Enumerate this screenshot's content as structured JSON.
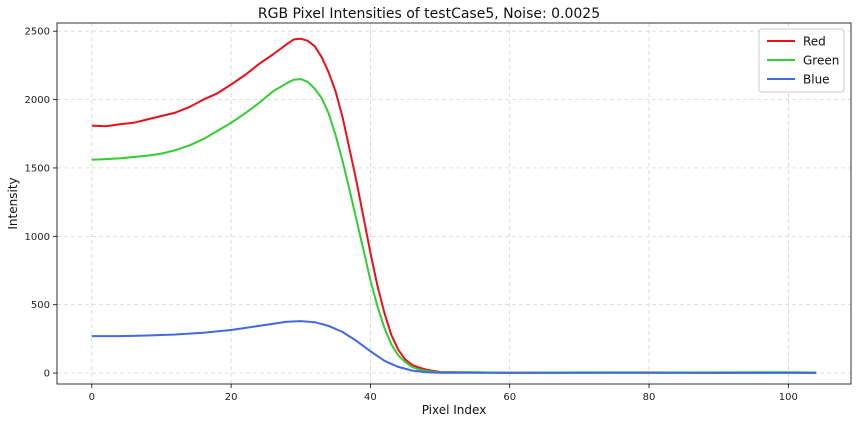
{
  "chart_data": {
    "type": "line",
    "title": "RGB Pixel Intensities of testCase5, Noise: 0.0025",
    "xlabel": "Pixel Index",
    "ylabel": "Intensity",
    "xlim": [
      -5,
      109
    ],
    "ylim": [
      -80,
      2560
    ],
    "xticks": [
      0,
      20,
      40,
      60,
      80,
      100
    ],
    "yticks": [
      0,
      500,
      1000,
      1500,
      2000,
      2500
    ],
    "grid": true,
    "legend_position": "top-right",
    "series": [
      {
        "name": "Red",
        "color": "#e8101a",
        "points": [
          [
            0,
            1810
          ],
          [
            2,
            1805
          ],
          [
            4,
            1820
          ],
          [
            6,
            1830
          ],
          [
            8,
            1855
          ],
          [
            10,
            1880
          ],
          [
            12,
            1905
          ],
          [
            14,
            1945
          ],
          [
            16,
            2000
          ],
          [
            18,
            2045
          ],
          [
            20,
            2110
          ],
          [
            22,
            2180
          ],
          [
            24,
            2260
          ],
          [
            26,
            2330
          ],
          [
            28,
            2405
          ],
          [
            29,
            2440
          ],
          [
            30,
            2445
          ],
          [
            31,
            2430
          ],
          [
            32,
            2390
          ],
          [
            33,
            2310
          ],
          [
            34,
            2200
          ],
          [
            35,
            2060
          ],
          [
            36,
            1870
          ],
          [
            37,
            1640
          ],
          [
            38,
            1400
          ],
          [
            39,
            1140
          ],
          [
            40,
            880
          ],
          [
            41,
            640
          ],
          [
            42,
            440
          ],
          [
            43,
            280
          ],
          [
            44,
            170
          ],
          [
            45,
            100
          ],
          [
            46,
            60
          ],
          [
            47,
            40
          ],
          [
            48,
            25
          ],
          [
            50,
            8
          ],
          [
            55,
            5
          ],
          [
            60,
            3
          ],
          [
            70,
            4
          ],
          [
            80,
            5
          ],
          [
            90,
            3
          ],
          [
            100,
            4
          ],
          [
            104,
            3
          ]
        ]
      },
      {
        "name": "Green",
        "color": "#33cc33",
        "points": [
          [
            0,
            1560
          ],
          [
            2,
            1565
          ],
          [
            4,
            1570
          ],
          [
            6,
            1580
          ],
          [
            8,
            1590
          ],
          [
            10,
            1605
          ],
          [
            12,
            1630
          ],
          [
            14,
            1665
          ],
          [
            16,
            1710
          ],
          [
            18,
            1770
          ],
          [
            20,
            1830
          ],
          [
            22,
            1900
          ],
          [
            24,
            1975
          ],
          [
            26,
            2060
          ],
          [
            28,
            2120
          ],
          [
            29,
            2145
          ],
          [
            30,
            2150
          ],
          [
            31,
            2130
          ],
          [
            32,
            2080
          ],
          [
            33,
            2010
          ],
          [
            34,
            1900
          ],
          [
            35,
            1740
          ],
          [
            36,
            1550
          ],
          [
            37,
            1340
          ],
          [
            38,
            1120
          ],
          [
            39,
            900
          ],
          [
            40,
            680
          ],
          [
            41,
            490
          ],
          [
            42,
            330
          ],
          [
            43,
            210
          ],
          [
            44,
            130
          ],
          [
            45,
            80
          ],
          [
            46,
            45
          ],
          [
            47,
            25
          ],
          [
            48,
            15
          ],
          [
            50,
            5
          ],
          [
            55,
            6
          ],
          [
            60,
            3
          ],
          [
            70,
            5
          ],
          [
            80,
            4
          ],
          [
            90,
            5
          ],
          [
            100,
            6
          ],
          [
            104,
            4
          ]
        ]
      },
      {
        "name": "Blue",
        "color": "#4169e1",
        "points": [
          [
            0,
            270
          ],
          [
            4,
            270
          ],
          [
            8,
            275
          ],
          [
            12,
            282
          ],
          [
            16,
            295
          ],
          [
            20,
            315
          ],
          [
            24,
            345
          ],
          [
            28,
            375
          ],
          [
            30,
            380
          ],
          [
            32,
            372
          ],
          [
            34,
            345
          ],
          [
            36,
            300
          ],
          [
            38,
            235
          ],
          [
            40,
            160
          ],
          [
            42,
            90
          ],
          [
            44,
            45
          ],
          [
            46,
            18
          ],
          [
            48,
            6
          ],
          [
            50,
            2
          ],
          [
            60,
            1
          ],
          [
            70,
            1
          ],
          [
            80,
            1
          ],
          [
            90,
            1
          ],
          [
            100,
            1
          ],
          [
            104,
            1
          ]
        ]
      }
    ]
  }
}
